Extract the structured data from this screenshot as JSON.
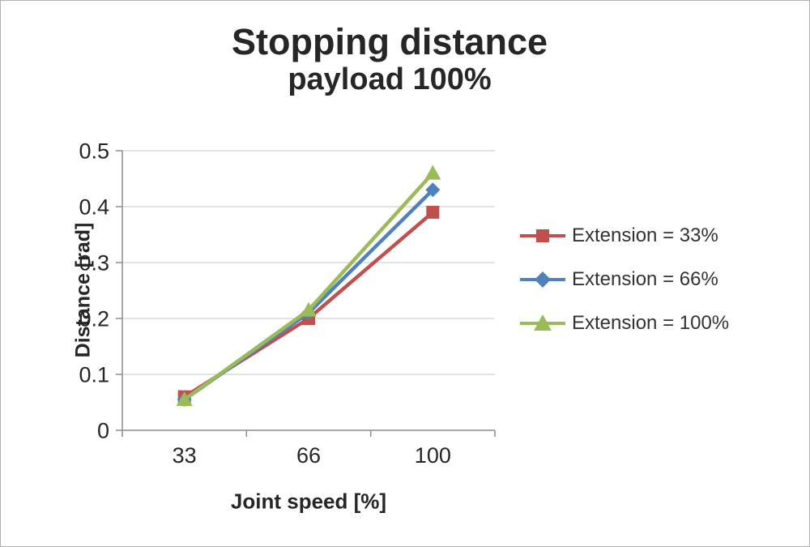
{
  "chart_data": {
    "type": "line",
    "title": "Stopping distance",
    "subtitle": "payload 100%",
    "xlabel": "Joint speed [%]",
    "ylabel": "Distance [rad]",
    "categories": [
      "33",
      "66",
      "100"
    ],
    "ylim": [
      0,
      0.5
    ],
    "yticks": [
      0,
      0.1,
      0.2,
      0.3,
      0.4,
      0.5
    ],
    "yticklabels": [
      "0",
      "0.1",
      "0.2",
      "0.3",
      "0.4",
      "0.5"
    ],
    "grid": true,
    "legend_position": "right",
    "colors": {
      "grid": "#c6c6c6",
      "axis": "#8c8c8c",
      "text": "#262626"
    },
    "series": [
      {
        "name": "Extension = 33%",
        "marker": "square",
        "color": "#c0504d",
        "values": [
          0.06,
          0.2,
          0.39
        ]
      },
      {
        "name": "Extension = 66%",
        "marker": "diamond",
        "color": "#4f81bd",
        "values": [
          0.055,
          0.21,
          0.43
        ]
      },
      {
        "name": "Extension = 100%",
        "marker": "triangle",
        "color": "#9bbb59",
        "values": [
          0.055,
          0.215,
          0.46
        ]
      }
    ]
  }
}
